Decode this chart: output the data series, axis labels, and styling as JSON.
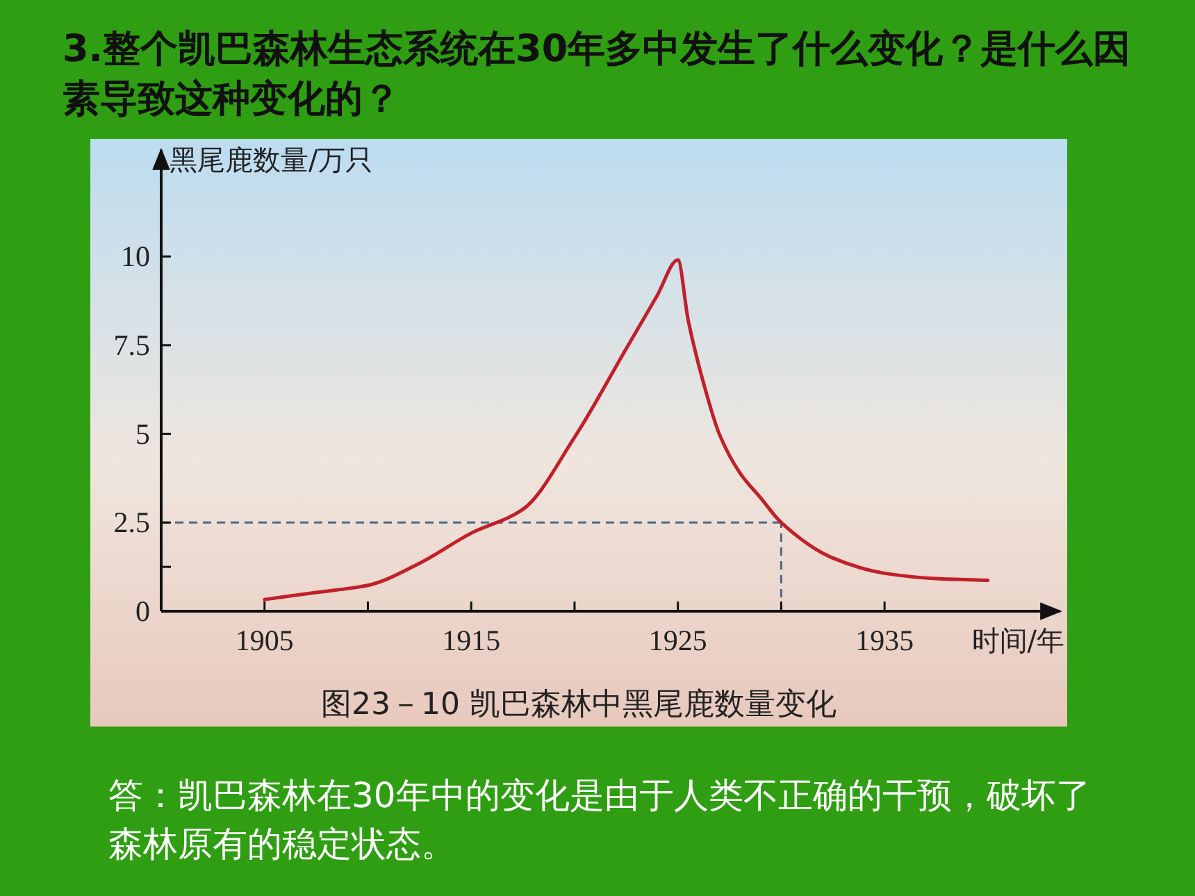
{
  "chart_data": {
    "type": "line",
    "title": "3.整个凯巴森林生态系统在30年多中发生了什么变化？是什么因素导致这种变化的？",
    "ylabel": "黑尾鹿数量/万只",
    "xlabel": "时间/年",
    "x": [
      1905,
      1907.5,
      1910,
      1912.5,
      1915,
      1917.5,
      1920,
      1922.5,
      1924,
      1925,
      1925.5,
      1926.5,
      1927,
      1928,
      1929,
      1930,
      1932.5,
      1935,
      1937.5,
      1940
    ],
    "series": [
      {
        "color": "#c0202a",
        "values": [
          0.33,
          0.53,
          0.73,
          1.35,
          2.2,
          2.87,
          4.9,
          7.4,
          8.9,
          9.9,
          8.2,
          5.9,
          5.0,
          3.9,
          3.2,
          2.5,
          1.5,
          1.07,
          0.92,
          0.87
        ]
      }
    ],
    "xlim": [
      1900,
      1943.5
    ],
    "ylim": [
      0,
      13
    ],
    "xticks": [
      1905,
      {
        "value": 1910,
        "label": null
      },
      1915,
      {
        "value": 1920,
        "label": null
      },
      1925,
      {
        "value": 1930,
        "label": null
      },
      1935
    ],
    "yticks": [
      0,
      {
        "value": 1.25,
        "label": null
      },
      2.5,
      5,
      7.5,
      10
    ],
    "ref_lines": [
      {
        "axis": "y",
        "value": 2.5,
        "color": "#4a6a8a",
        "line_style": "dashed"
      },
      {
        "axis": "x",
        "value": 1930,
        "color": "#4a6a8a",
        "line_style": "dashed"
      }
    ],
    "annotations": [
      "图23－10 凯巴森林中黑尾鹿数量变化",
      "答：凯巴森林在30年中的变化是由于人类不正确的干预，破坏了森林原有的稳定状态。"
    ],
    "grid": false,
    "marker": "none",
    "line_style": "solid"
  }
}
